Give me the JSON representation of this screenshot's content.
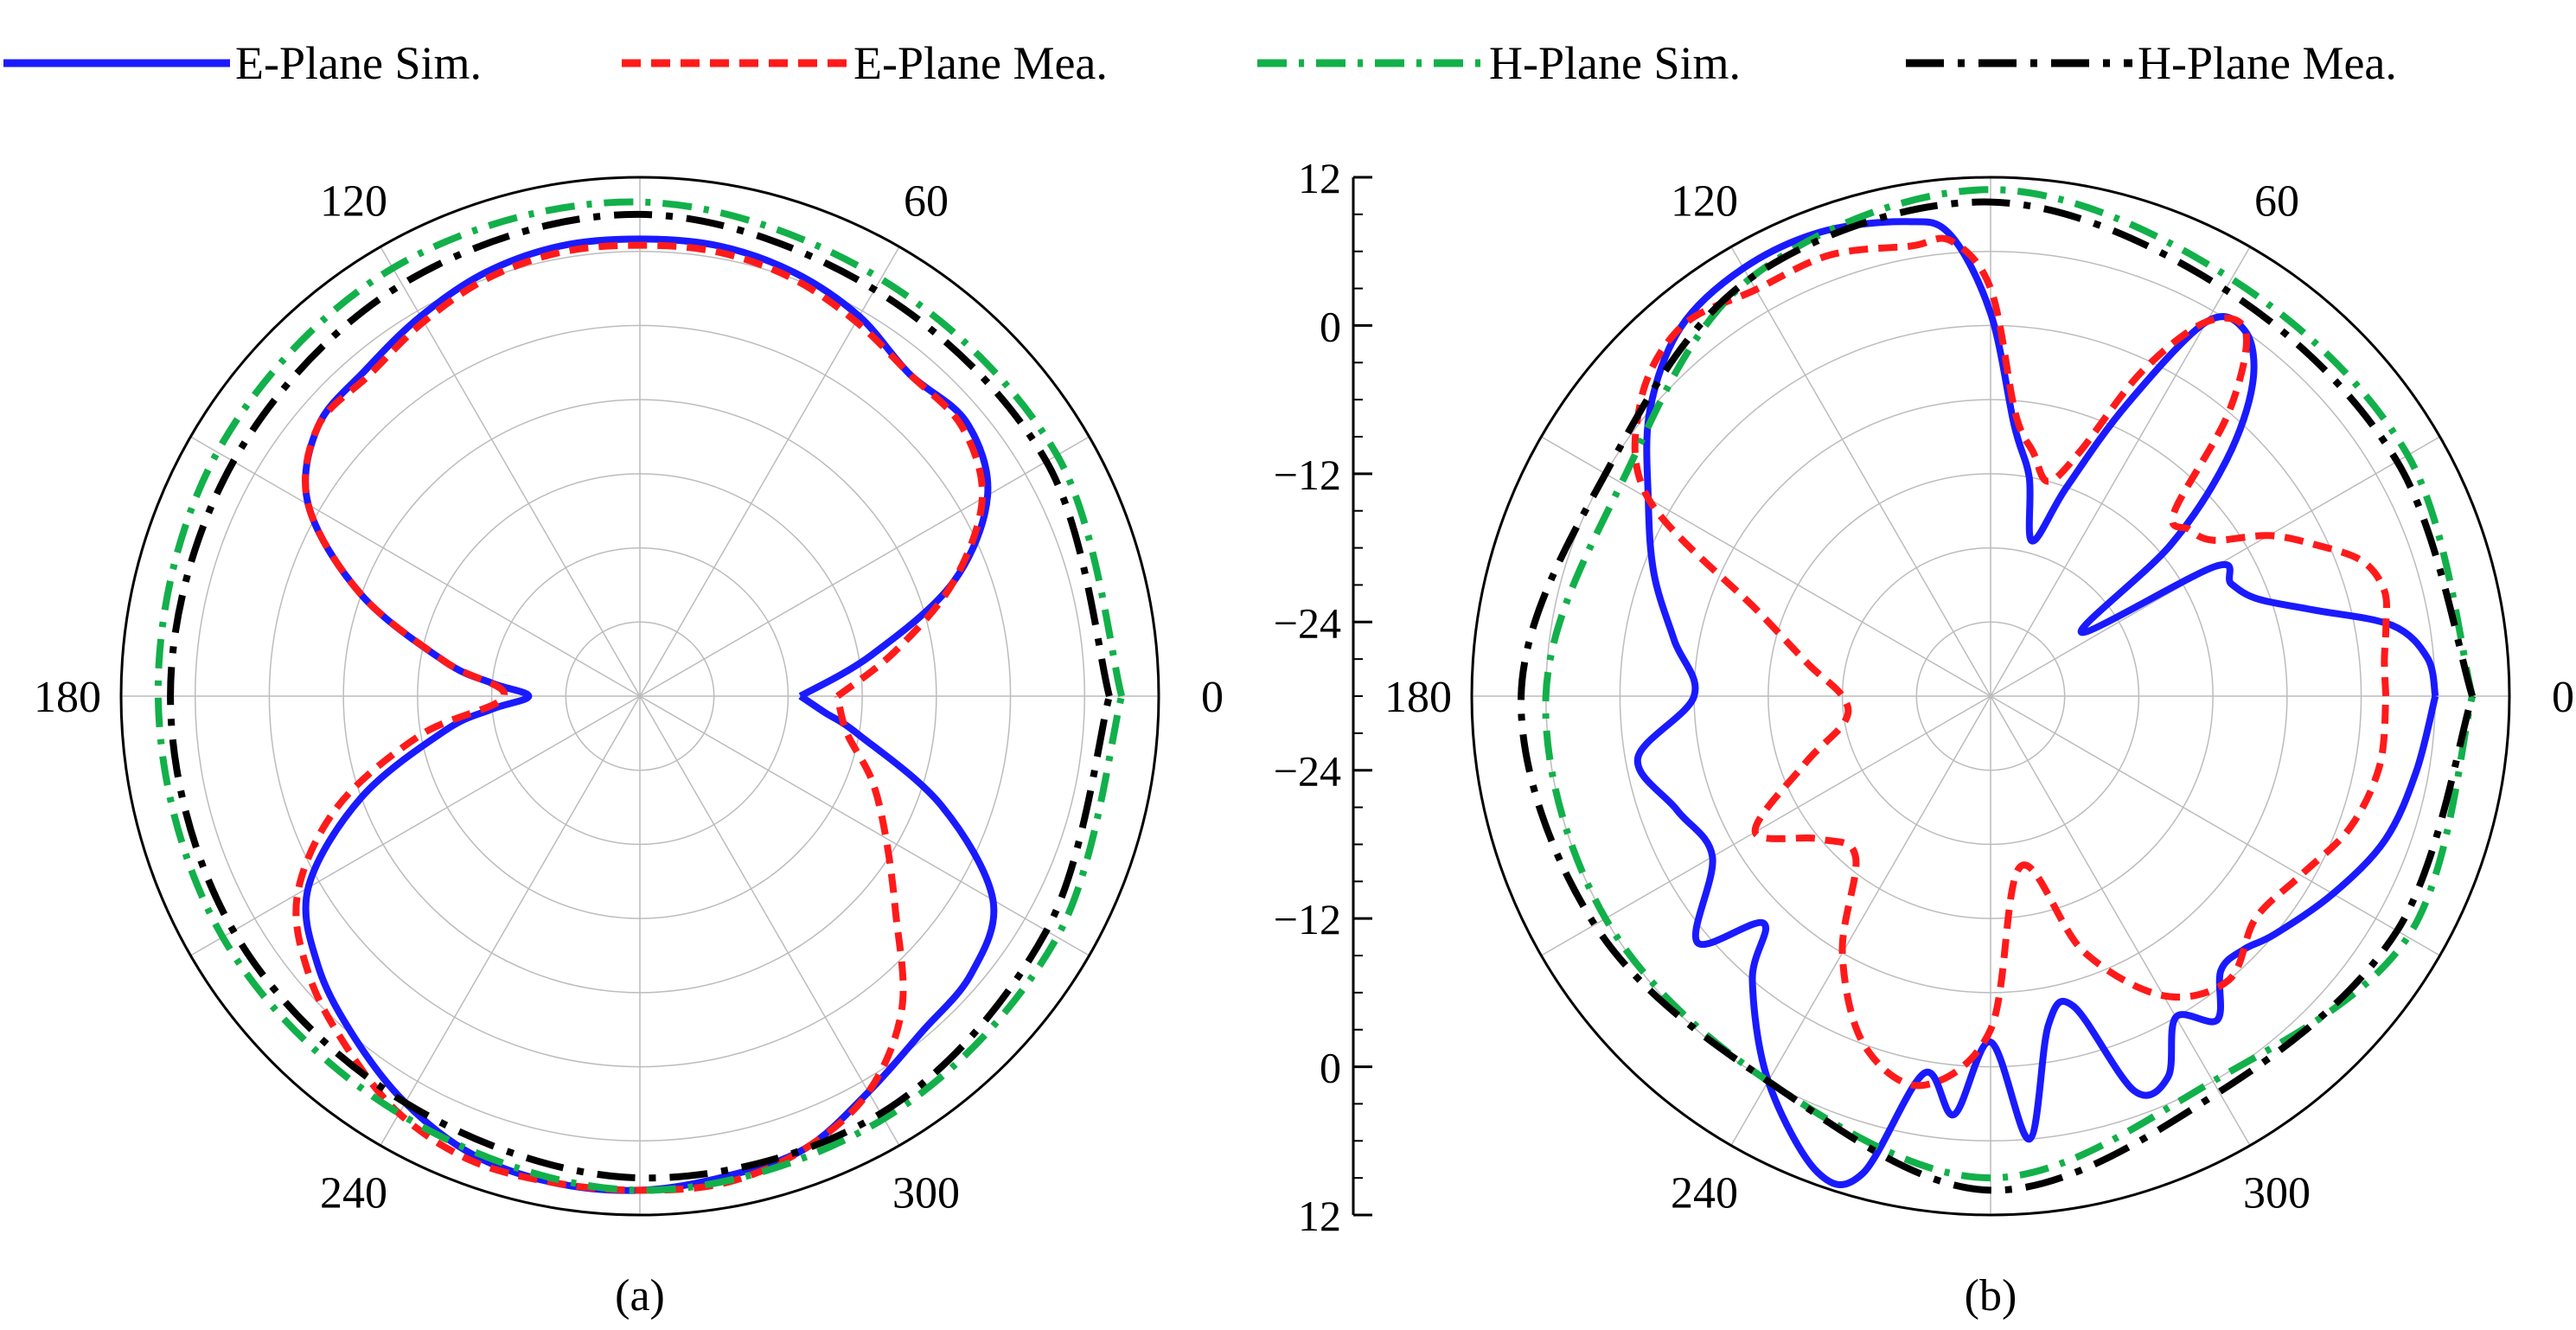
{
  "legend": [
    {
      "label": "E-Plane Sim.",
      "color": "#1a1aff",
      "dash": "solid"
    },
    {
      "label": "E-Plane Mea.",
      "color": "#ff1a1a",
      "dash": "dash"
    },
    {
      "label": "H-Plane Sim.",
      "color": "#12b04a",
      "dash": "dashdot"
    },
    {
      "label": "H-Plane Mea.",
      "color": "#000000",
      "dash": "longdashdot"
    }
  ],
  "chart_data": [
    {
      "type": "polar",
      "panel_label": "(a)",
      "angle_ticks": [
        {
          "deg": 0,
          "label": "0"
        },
        {
          "deg": 60,
          "label": "60"
        },
        {
          "deg": 120,
          "label": "120"
        },
        {
          "deg": 180,
          "label": "180"
        },
        {
          "deg": 240,
          "label": "240"
        },
        {
          "deg": 300,
          "label": "300"
        }
      ],
      "radial_range_db": [
        -30,
        12
      ],
      "series": [
        {
          "name": "E-Plane Sim.",
          "color": "#1a1aff",
          "theta": [
            0,
            10,
            20,
            30,
            40,
            50,
            60,
            70,
            80,
            90,
            100,
            110,
            120,
            130,
            140,
            150,
            160,
            170,
            175,
            180,
            185,
            190,
            200,
            210,
            220,
            230,
            240,
            250,
            260,
            270,
            280,
            290,
            300,
            310,
            320,
            330,
            340,
            350,
            355,
            360
          ],
          "r": [
            -17,
            -11,
            -3,
            2.5,
            4.5,
            4,
            5.5,
            6.5,
            7,
            7,
            7,
            6.5,
            5.5,
            4.5,
            4,
            1,
            -6,
            -14,
            -18,
            -21,
            -18,
            -14,
            -6,
            1,
            4,
            6,
            8,
            9.5,
            10,
            10,
            9.5,
            9,
            7,
            5.5,
            5,
            3,
            -4,
            -12,
            -15,
            -17
          ]
        },
        {
          "name": "E-Plane Mea.",
          "color": "#ff1a1a",
          "theta": [
            0,
            10,
            20,
            30,
            40,
            50,
            60,
            70,
            80,
            90,
            100,
            110,
            120,
            130,
            140,
            150,
            160,
            170,
            180,
            190,
            200,
            210,
            220,
            230,
            240,
            250,
            260,
            270,
            280,
            290,
            300,
            310,
            320,
            330,
            340,
            350,
            360
          ],
          "r": [
            -14,
            -9,
            -3,
            2,
            4,
            4,
            5,
            6,
            6.5,
            6.5,
            6.5,
            6,
            5,
            4,
            4,
            1,
            -6,
            -14,
            -19,
            -12,
            -4,
            2,
            5,
            7,
            9,
            10,
            10,
            10,
            10,
            9,
            7,
            3,
            -3,
            -7,
            -10,
            -13,
            -14
          ]
        },
        {
          "name": "H-Plane Sim.",
          "color": "#12b04a",
          "theta": [
            0,
            30,
            60,
            90,
            120,
            150,
            180,
            210,
            240,
            270,
            300,
            330,
            360
          ],
          "r": [
            9,
            9,
            9,
            10,
            10,
            9.5,
            9,
            9,
            9,
            10,
            9.5,
            9,
            9
          ]
        },
        {
          "name": "H-Plane Mea.",
          "color": "#000000",
          "theta": [
            0,
            30,
            60,
            90,
            120,
            150,
            180,
            210,
            240,
            270,
            300,
            330,
            360
          ],
          "r": [
            8,
            8,
            8,
            9,
            8.5,
            8,
            8,
            8,
            8,
            9,
            9,
            8,
            8
          ]
        }
      ]
    },
    {
      "type": "polar",
      "panel_label": "(b)",
      "angle_ticks": [
        {
          "deg": 0,
          "label": "0"
        },
        {
          "deg": 60,
          "label": "60"
        },
        {
          "deg": 120,
          "label": "120"
        },
        {
          "deg": 180,
          "label": "180"
        },
        {
          "deg": 240,
          "label": "240"
        },
        {
          "deg": 300,
          "label": "300"
        }
      ],
      "radial_range_db": [
        -30,
        12
      ],
      "radial_axis_labels_top": [
        "12",
        "0",
        "−12",
        "−24"
      ],
      "radial_axis_labels_bottom": [
        "−24",
        "−12",
        "0",
        "12"
      ],
      "series": [
        {
          "name": "E-Plane Sim.",
          "color": "#1a1aff",
          "theta": [
            0,
            5,
            10,
            15,
            20,
            25,
            30,
            35,
            40,
            45,
            50,
            55,
            60,
            65,
            70,
            75,
            80,
            85,
            90,
            95,
            100,
            110,
            120,
            130,
            140,
            150,
            160,
            170,
            180,
            190,
            200,
            210,
            220,
            225,
            230,
            240,
            250,
            255,
            260,
            265,
            270,
            275,
            280,
            285,
            290,
            295,
            300,
            305,
            310,
            315,
            320,
            330,
            340,
            350,
            360
          ],
          "r": [
            6,
            5.5,
            3,
            -3,
            -7,
            -8.5,
            -9,
            -21,
            -11,
            -3,
            3,
            6,
            5,
            -4,
            -12,
            -17,
            -12,
            -8,
            1,
            7.5,
            9,
            10,
            10,
            9,
            6,
            2,
            -1,
            -4,
            -6,
            -1,
            -3,
            -4,
            1,
            -4,
            0,
            6,
            11,
            10,
            1,
            4,
            -2,
            6,
            -3,
            -4,
            4,
            4,
            0,
            2,
            -1,
            -1,
            0,
            2,
            4,
            5,
            6
          ]
        },
        {
          "name": "E-Plane Mea.",
          "color": "#ff1a1a",
          "theta": [
            0,
            5,
            10,
            15,
            20,
            25,
            30,
            35,
            40,
            45,
            50,
            55,
            60,
            65,
            70,
            75,
            80,
            85,
            90,
            95,
            100,
            110,
            120,
            130,
            140,
            150,
            160,
            170,
            180,
            190,
            200,
            210,
            220,
            230,
            240,
            250,
            260,
            270,
            280,
            290,
            300,
            310,
            320,
            330,
            340,
            350,
            360
          ],
          "r": [
            2,
            2,
            2.5,
            3,
            2,
            -1,
            -4,
            -8,
            -9,
            -9,
            0,
            6,
            5,
            -1,
            -9,
            -12,
            -10,
            -7,
            3,
            7,
            7,
            8,
            8,
            9,
            7,
            2,
            -10,
            -15,
            -18,
            -18,
            -14,
            -8,
            -12,
            -13,
            -6,
            0,
            2,
            -3,
            -16,
            -8,
            -2,
            0,
            -2,
            -1,
            1,
            2,
            2
          ]
        },
        {
          "name": "H-Plane Sim.",
          "color": "#12b04a",
          "theta": [
            0,
            30,
            60,
            90,
            120,
            150,
            180,
            210,
            240,
            270,
            300,
            330,
            360
          ],
          "r": [
            9,
            9,
            9,
            11,
            9,
            4.5,
            6,
            6,
            6,
            9,
            6,
            9,
            9
          ]
        },
        {
          "name": "H-Plane Mea.",
          "color": "#000000",
          "theta": [
            0,
            30,
            60,
            90,
            120,
            150,
            180,
            210,
            240,
            270,
            300,
            330,
            360
          ],
          "r": [
            9,
            8,
            8,
            10,
            9,
            6,
            8,
            7,
            6,
            10,
            7,
            8,
            9
          ]
        }
      ]
    }
  ]
}
